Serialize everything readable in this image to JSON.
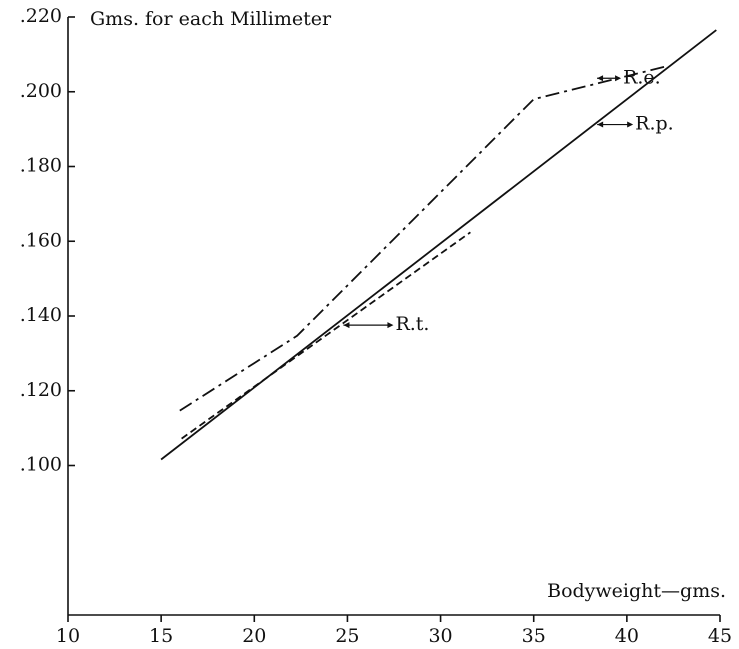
{
  "chart_data": {
    "type": "line",
    "title": "Gms. for each Millimeter",
    "x_label": "Bodyweight—gms.",
    "xlim": [
      10,
      45
    ],
    "xticks": [
      10,
      15,
      20,
      25,
      30,
      35,
      40,
      45
    ],
    "ylim": [
      0.06,
      0.22
    ],
    "yticks": [
      {
        "value": 0.1,
        "label": ".100"
      },
      {
        "value": 0.12,
        "label": ".120"
      },
      {
        "value": 0.14,
        "label": ".140"
      },
      {
        "value": 0.16,
        "label": ".160"
      },
      {
        "value": 0.18,
        "label": ".180"
      },
      {
        "value": 0.2,
        "label": ".200"
      },
      {
        "value": 0.22,
        "label": ".220"
      }
    ],
    "series": [
      {
        "name": "R.e.",
        "color": "#111111",
        "dash": "dash-dot",
        "x": [
          16,
          22.3,
          35,
          42.2
        ],
        "values": [
          0.1147,
          0.1347,
          0.198,
          0.2069
        ]
      },
      {
        "name": "R.p.",
        "color": "#111111",
        "dash": "solid",
        "x": [
          15,
          44.8
        ],
        "values": [
          0.1016,
          0.2165
        ]
      },
      {
        "name": "R.t.",
        "color": "#111111",
        "dash": "dashed",
        "x": [
          16.1,
          31.6
        ],
        "values": [
          0.1072,
          0.1624
        ]
      }
    ]
  }
}
